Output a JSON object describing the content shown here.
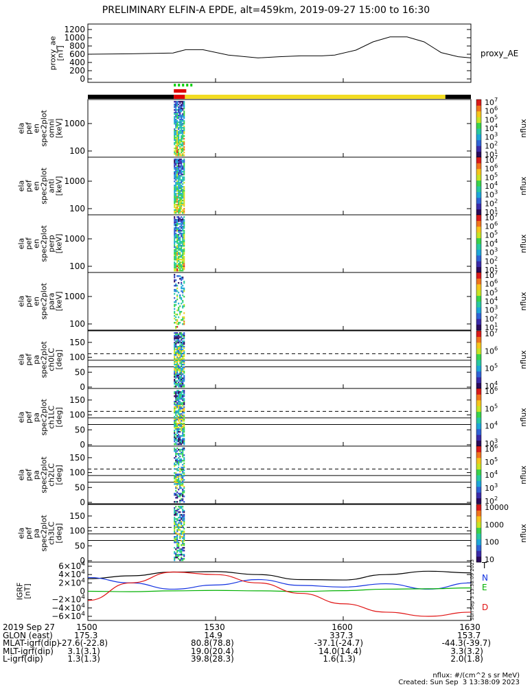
{
  "title": "PRELIMINARY ELFIN-A EPDE, alt=459km, 2019-09-27 15:00 to 16:30",
  "time_range": [
    "15:00",
    "16:30"
  ],
  "x_tick_labels": [
    "1500",
    "1530",
    "1600",
    "1630"
  ],
  "x_tick_minutes": [
    0,
    30,
    60,
    90
  ],
  "colors": {
    "yellow_bar": "#f2dc22",
    "black_bar": "#000000",
    "green_marker": "#00d000",
    "red_marker": "#e00000",
    "N_color": "#1030e0",
    "E_color": "#00b000",
    "D_color": "#e01010",
    "T_color": "#000000"
  },
  "chart_data": [
    {
      "type": "line",
      "name": "proxy_ae",
      "ylabel": "proxy_ae\n[nT]",
      "legend": "proxy_AE",
      "yticks": [
        "0",
        "200",
        "400",
        "600",
        "800",
        "1000",
        "1200"
      ],
      "ylim": [
        0,
        1300
      ],
      "x_min": [
        0,
        10,
        20,
        23,
        27,
        33,
        40,
        45,
        50,
        55,
        58,
        63,
        67,
        71,
        75,
        79,
        83,
        87,
        90
      ],
      "y": [
        600,
        610,
        630,
        710,
        710,
        580,
        510,
        540,
        560,
        560,
        580,
        700,
        900,
        1020,
        1020,
        900,
        640,
        540,
        510
      ]
    },
    {
      "type": "heatmap",
      "name": "ela_pef_en_spec2plot_omni",
      "ylabel": "ela\npef\nen\nspec2plot\nomni\n[keV]",
      "yticks": [
        "100",
        "1000"
      ],
      "colorbar_label": "nflux",
      "colorbar_ticks": [
        "10^1",
        "10^2",
        "10^3",
        "10^4",
        "10^5",
        "10^6",
        "10^7"
      ],
      "active_interval_min": [
        20.2,
        22.8
      ]
    },
    {
      "type": "heatmap",
      "name": "ela_pef_en_spec2plot_anti",
      "ylabel": "ela\npef\nen\nspec2plot\nanti\n[keV]",
      "yticks": [
        "100",
        "1000"
      ],
      "colorbar_label": "nflux",
      "colorbar_ticks": [
        "10^1",
        "10^2",
        "10^3",
        "10^4",
        "10^5",
        "10^6",
        "10^7"
      ],
      "active_interval_min": [
        20.2,
        22.8
      ]
    },
    {
      "type": "heatmap",
      "name": "ela_pef_en_spec2plot_perp",
      "ylabel": "ela\npef\nen\nspec2plot\nperp\n[keV]",
      "yticks": [
        "100",
        "1000"
      ],
      "colorbar_label": "nflux",
      "colorbar_ticks": [
        "10^1",
        "10^2",
        "10^3",
        "10^4",
        "10^5",
        "10^6",
        "10^7"
      ],
      "active_interval_min": [
        20.2,
        22.8
      ]
    },
    {
      "type": "heatmap",
      "name": "ela_pef_en_spec2plot_para",
      "ylabel": "ela\npef\nen\nspec2plot\npara\n[keV]",
      "yticks": [
        "100",
        "1000"
      ],
      "colorbar_label": "nflux",
      "colorbar_ticks": [
        "10^1",
        "10^2",
        "10^3",
        "10^4",
        "10^5",
        "10^6",
        "10^7"
      ],
      "active_interval_min": [
        20.2,
        22.8
      ]
    },
    {
      "type": "heatmap",
      "name": "ela_pef_pa_spec2plot_ch0LC",
      "ylabel": "ela\npef\npa\nspec2plot\nch0LC\n[deg]",
      "yticks": [
        "0",
        "50",
        "100",
        "150"
      ],
      "colorbar_label": "nflux",
      "colorbar_ticks": [
        "10^4",
        "10^5",
        "10^6",
        "10^7"
      ],
      "active_interval_min": [
        20.2,
        22.8
      ]
    },
    {
      "type": "heatmap",
      "name": "ela_pef_pa_spec2plot_ch1LC",
      "ylabel": "ela\npef\npa\nspec2plot\nch1LC\n[deg]",
      "yticks": [
        "0",
        "50",
        "100",
        "150"
      ],
      "colorbar_label": "nflux",
      "colorbar_ticks": [
        "10^3",
        "10^4",
        "10^5",
        "10^6"
      ],
      "active_interval_min": [
        20.2,
        22.8
      ]
    },
    {
      "type": "heatmap",
      "name": "ela_pef_pa_spec2plot_ch2LC",
      "ylabel": "ela\npef\npa\nspec2plot\nch2LC\n[deg]",
      "yticks": [
        "0",
        "50",
        "100",
        "150"
      ],
      "colorbar_label": "nflux",
      "colorbar_ticks": [
        "10^2",
        "10^3",
        "10^4",
        "10^5",
        "10^6"
      ],
      "active_interval_min": [
        20.2,
        22.8
      ]
    },
    {
      "type": "heatmap",
      "name": "ela_pef_pa_spec2plot_ch3LC",
      "ylabel": "ela\npef\npa\nspec2plot\nch3LC\n[deg]",
      "yticks": [
        "0",
        "50",
        "100",
        "150"
      ],
      "colorbar_label": "nflux",
      "colorbar_ticks": [
        "10",
        "100",
        "1000",
        "10000"
      ],
      "active_interval_min": [
        20.2,
        22.8
      ]
    },
    {
      "type": "line",
      "name": "IGRF",
      "ylabel": "IGRF\n[nT]",
      "yticks": [
        "6×10^4",
        "4×10^4",
        "2×10^4",
        "0",
        "−2×10^4",
        "−4×10^4",
        "−6×10^4"
      ],
      "ylim": [
        -60000,
        60000
      ],
      "series": [
        {
          "name": "T",
          "color": "#000000",
          "x_min": [
            0,
            10,
            20,
            30,
            40,
            50,
            60,
            70,
            80,
            90
          ],
          "y": [
            30000,
            37000,
            46000,
            47000,
            40000,
            28000,
            27000,
            40000,
            48000,
            44000
          ]
        },
        {
          "name": "N",
          "color": "#1030e0",
          "x_min": [
            0,
            10,
            20,
            30,
            40,
            50,
            60,
            70,
            80,
            90
          ],
          "y": [
            33000,
            20000,
            5000,
            15000,
            28000,
            14000,
            10000,
            18000,
            5000,
            20000
          ]
        },
        {
          "name": "E",
          "color": "#00b000",
          "x_min": [
            0,
            10,
            20,
            30,
            40,
            50,
            60,
            70,
            80,
            90
          ],
          "y": [
            0,
            -1000,
            1000,
            2000,
            1000,
            -500,
            1500,
            5000,
            6000,
            8000
          ]
        },
        {
          "name": "D",
          "color": "#e01010",
          "x_min": [
            0,
            10,
            20,
            30,
            40,
            50,
            60,
            70,
            80,
            90
          ],
          "y": [
            -22000,
            20000,
            46000,
            40000,
            20000,
            -5000,
            -30000,
            -50000,
            -60000,
            -50000
          ]
        }
      ]
    }
  ],
  "info_rows": [
    {
      "label": "2019 Sep 27",
      "values": [
        "1500",
        "1530",
        "1600",
        "1630"
      ]
    },
    {
      "label": "GLON (east)",
      "values": [
        "175.3",
        "14.9",
        "337.3",
        "153.7"
      ]
    },
    {
      "label": "MLAT-igrf(dip)",
      "values": [
        "-27.6(-22.8)",
        "80.8(78.8)",
        "-37.1(-24.7)",
        "-44.3(-39.7)"
      ]
    },
    {
      "label": "MLT-igrf(dip)",
      "values": [
        "3.1(3.1)",
        "19.0(20.4)",
        "14.0(14.4)",
        "3.3(3.2)"
      ]
    },
    {
      "label": "L-igrf(dip)",
      "values": [
        "1.3(1.3)",
        "39.8(28.3)",
        "1.6(1.3)",
        "2.0(1.8)"
      ]
    }
  ],
  "footer": {
    "units": "nflux: #/(cm^2 s sr MeV)",
    "created": "Created: Sun Sep  3 13:38:09 2023",
    "vertical_stamp": "Sun Sep  3 13:38:09 2023"
  }
}
